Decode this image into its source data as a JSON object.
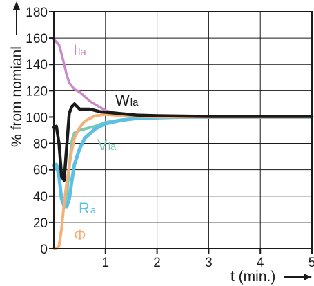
{
  "chart_data": {
    "type": "line",
    "xlabel": "t (min.)",
    "ylabel": "% from nomianl",
    "xlim": [
      0,
      5
    ],
    "ylim": [
      0,
      180
    ],
    "x_ticks": [
      "1",
      "2",
      "3",
      "4",
      "5"
    ],
    "y_ticks": [
      "0",
      "20",
      "40",
      "60",
      "80",
      "100",
      "120",
      "140",
      "160",
      "180"
    ],
    "grid": true,
    "series": [
      {
        "name": "Ila",
        "color": "#c98ac6",
        "x": [
          0,
          0.05,
          0.1,
          0.15,
          0.2,
          0.25,
          0.3,
          0.4,
          0.5,
          0.7,
          1.0,
          1.3,
          1.6,
          2.0,
          2.5,
          3.0,
          4.0,
          5.0
        ],
        "y": [
          159,
          157,
          155,
          148,
          140,
          132,
          126,
          121,
          119,
          112,
          105,
          102,
          101,
          100.5,
          100.2,
          100,
          100,
          100
        ]
      },
      {
        "name": "Wla",
        "color": "#1a1a1a",
        "x": [
          0,
          0.05,
          0.1,
          0.15,
          0.2,
          0.25,
          0.3,
          0.35,
          0.4,
          0.45,
          0.5,
          0.7,
          0.9,
          1.2,
          1.6,
          2.0,
          3.0,
          4.0,
          5.0
        ],
        "y": [
          92,
          93,
          80,
          55,
          52,
          78,
          103,
          108,
          110,
          108,
          106,
          106,
          104,
          103,
          101.5,
          101,
          100.5,
          100.5,
          100.5
        ]
      },
      {
        "name": "Vla",
        "color": "#7cc9b4",
        "x": [
          0,
          0.05,
          0.1,
          0.15,
          0.2,
          0.25,
          0.3,
          0.35,
          0.4,
          0.5,
          0.6,
          0.8,
          1.0,
          1.3,
          1.6,
          2.0,
          3.0,
          4.0,
          5.0
        ],
        "y": [
          60,
          63,
          55,
          38,
          33,
          40,
          62,
          82,
          88,
          90,
          91,
          93,
          96,
          98,
          99,
          99.5,
          100,
          100,
          100
        ]
      },
      {
        "name": "Ra",
        "color": "#5bbfe6",
        "x": [
          0,
          0.05,
          0.1,
          0.15,
          0.2,
          0.25,
          0.3,
          0.35,
          0.4,
          0.5,
          0.6,
          0.8,
          1.0,
          1.3,
          1.6,
          2.0,
          2.5,
          3.0,
          4.0,
          5.0
        ],
        "y": [
          63,
          64,
          55,
          38,
          32,
          32,
          38,
          52,
          64,
          76,
          84,
          91,
          95,
          97.5,
          99,
          99.5,
          100,
          100,
          100,
          100
        ]
      },
      {
        "name": "Φ",
        "color": "#f5b078",
        "x": [
          0,
          0.05,
          0.1,
          0.15,
          0.2,
          0.25,
          0.3,
          0.35,
          0.4,
          0.5,
          0.6,
          0.8,
          1.0,
          1.3,
          1.6,
          2.0,
          3.0,
          4.0,
          5.0
        ],
        "y": [
          0,
          0,
          2,
          15,
          35,
          50,
          63,
          75,
          84,
          92,
          97,
          101,
          102,
          101,
          100.5,
          100,
          100,
          100,
          100
        ]
      }
    ],
    "annotations": [
      {
        "series": "Ila",
        "text_main": "I",
        "text_sub": "la"
      },
      {
        "series": "Wla",
        "text_main": "W",
        "text_sub": "la"
      },
      {
        "series": "Vla",
        "text_main": "V",
        "text_sub": "la"
      },
      {
        "series": "Ra",
        "text_main": "R",
        "text_sub": "a"
      },
      {
        "series": "Φ",
        "text_main": "Φ",
        "text_sub": ""
      }
    ]
  }
}
